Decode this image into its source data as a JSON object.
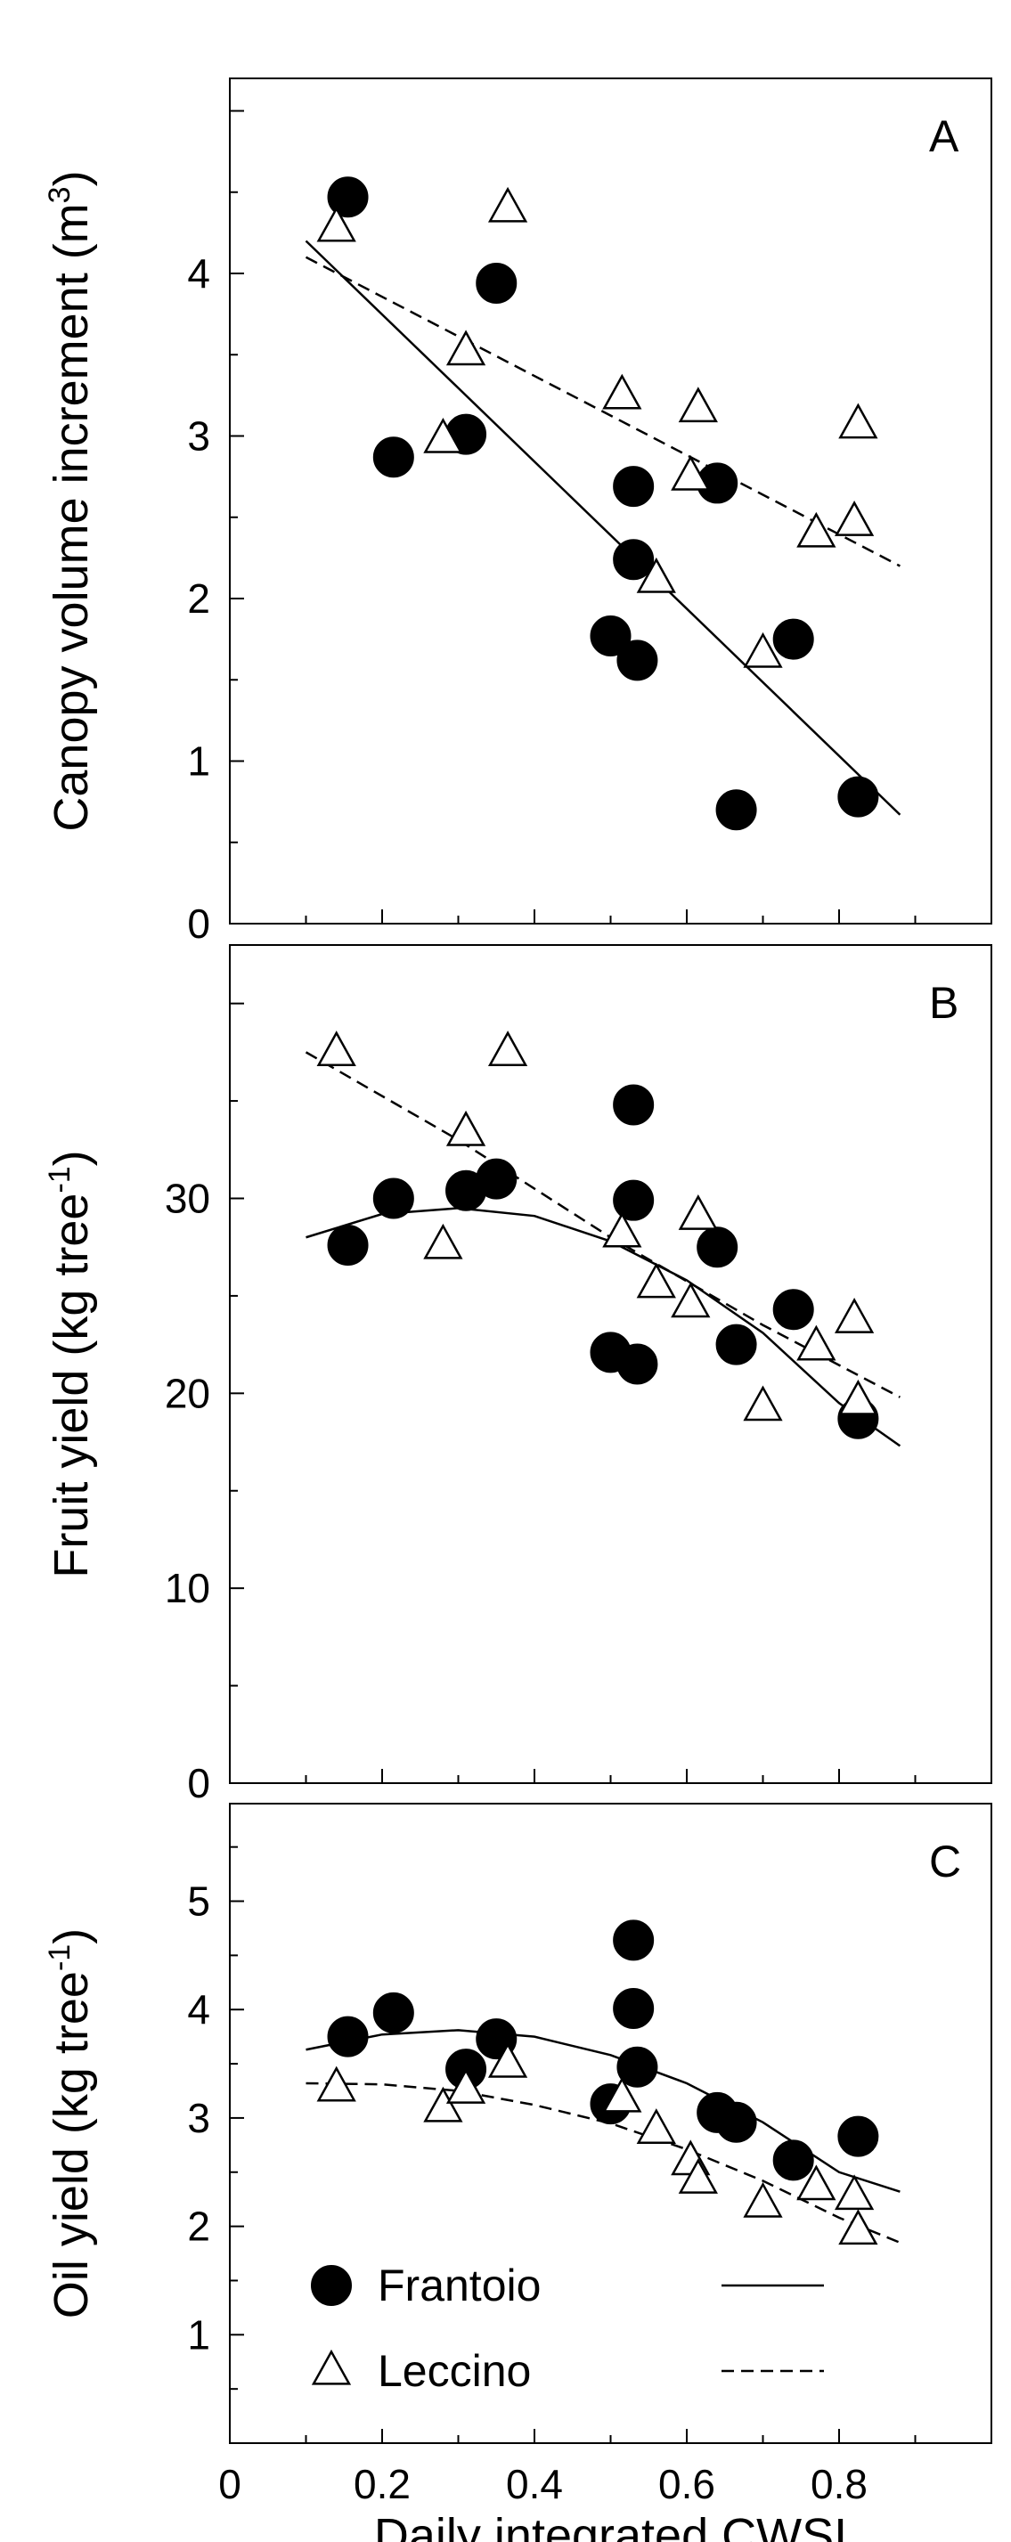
{
  "chart_data": [
    {
      "type": "scatter",
      "panel": "A",
      "ylabel": "Canopy volume increment (m",
      "ylabel_sup": "3",
      "ylabel_end": ")",
      "ylim": [
        0,
        5.2
      ],
      "yticks": [
        0,
        1,
        2,
        3,
        4
      ],
      "xlim": [
        0,
        1.0
      ],
      "series": [
        {
          "name": "Frantoio",
          "marker": "circle",
          "fit": "solid",
          "x": [
            0.155,
            0.215,
            0.31,
            0.35,
            0.5,
            0.53,
            0.53,
            0.535,
            0.64,
            0.665,
            0.74,
            0.825
          ],
          "y": [
            4.47,
            2.87,
            3.01,
            3.94,
            1.77,
            2.69,
            2.24,
            1.62,
            2.71,
            0.7,
            1.75,
            0.78
          ],
          "fit_line": {
            "x": [
              0.1,
              0.88
            ],
            "y": [
              4.2,
              0.67
            ]
          }
        },
        {
          "name": "Leccino",
          "marker": "triangle",
          "fit": "dashed",
          "x": [
            0.14,
            0.28,
            0.31,
            0.365,
            0.515,
            0.56,
            0.605,
            0.615,
            0.7,
            0.77,
            0.82,
            0.825
          ],
          "y": [
            4.28,
            2.98,
            3.52,
            4.4,
            3.25,
            2.12,
            2.75,
            3.17,
            1.66,
            2.4,
            2.47,
            3.07
          ],
          "fit_line": {
            "x": [
              0.1,
              0.88
            ],
            "y": [
              4.1,
              2.2
            ]
          }
        }
      ]
    },
    {
      "type": "scatter",
      "panel": "B",
      "ylabel": "Fruit yield (kg tree",
      "ylabel_sup": "-1",
      "ylabel_end": ")",
      "ylim": [
        0,
        43
      ],
      "yticks": [
        0,
        10,
        20,
        30
      ],
      "xlim": [
        0,
        1.0
      ],
      "series": [
        {
          "name": "Frantoio",
          "marker": "circle",
          "fit": "solid",
          "x": [
            0.155,
            0.215,
            0.31,
            0.35,
            0.5,
            0.53,
            0.53,
            0.535,
            0.64,
            0.665,
            0.74,
            0.825
          ],
          "y": [
            27.6,
            30.0,
            30.4,
            31.0,
            22.1,
            34.8,
            29.9,
            21.5,
            27.5,
            22.5,
            24.3,
            18.7
          ],
          "fit_line": {
            "x": [
              0.1,
              0.2,
              0.3,
              0.4,
              0.5,
              0.6,
              0.7,
              0.8,
              0.88
            ],
            "y": [
              28.0,
              29.2,
              29.5,
              29.1,
              27.8,
              25.8,
              23.1,
              19.5,
              17.3
            ]
          }
        },
        {
          "name": "Leccino",
          "marker": "triangle",
          "fit": "dashed",
          "x": [
            0.14,
            0.28,
            0.31,
            0.365,
            0.515,
            0.56,
            0.605,
            0.615,
            0.7,
            0.77,
            0.82,
            0.825
          ],
          "y": [
            37.5,
            27.6,
            33.4,
            37.5,
            28.2,
            25.6,
            24.6,
            29.1,
            19.3,
            22.4,
            23.8,
            19.6
          ],
          "fit_line": {
            "x": [
              0.1,
              0.3,
              0.5,
              0.7,
              0.88
            ],
            "y": [
              37.5,
              33.0,
              28.0,
              23.5,
              19.8
            ]
          }
        }
      ]
    },
    {
      "type": "scatter",
      "panel": "C",
      "ylabel": "Oil yield (kg tree",
      "ylabel_sup": "-1",
      "ylabel_end": ")",
      "ylim": [
        0,
        5.9
      ],
      "yticks": [
        1,
        2,
        3,
        4,
        5
      ],
      "xlim": [
        0,
        1.0
      ],
      "xticks": [
        0,
        0.2,
        0.4,
        0.6,
        0.8
      ],
      "xtick_labels": [
        "0",
        "0.2",
        "0.4",
        "0.6",
        "0.8"
      ],
      "xlabel": "Daily integrated CWSI",
      "series": [
        {
          "name": "Frantoio",
          "marker": "circle",
          "fit": "solid",
          "x": [
            0.155,
            0.215,
            0.31,
            0.35,
            0.5,
            0.53,
            0.53,
            0.535,
            0.64,
            0.665,
            0.74,
            0.825
          ],
          "y": [
            3.75,
            3.97,
            3.45,
            3.73,
            3.13,
            4.64,
            4.01,
            3.47,
            3.05,
            2.96,
            2.61,
            2.83
          ],
          "fit_line": {
            "x": [
              0.1,
              0.2,
              0.3,
              0.4,
              0.5,
              0.6,
              0.7,
              0.8,
              0.88
            ],
            "y": [
              3.63,
              3.77,
              3.81,
              3.75,
              3.58,
              3.32,
              2.96,
              2.5,
              2.32
            ]
          }
        },
        {
          "name": "Leccino",
          "marker": "triangle",
          "fit": "dashed",
          "x": [
            0.14,
            0.28,
            0.31,
            0.365,
            0.515,
            0.56,
            0.605,
            0.615,
            0.7,
            0.77,
            0.82,
            0.825
          ],
          "y": [
            3.28,
            3.09,
            3.26,
            3.5,
            3.18,
            2.89,
            2.6,
            2.43,
            2.21,
            2.37,
            2.28,
            1.96
          ],
          "fit_line": {
            "x": [
              0.1,
              0.2,
              0.3,
              0.4,
              0.5,
              0.6,
              0.7,
              0.8,
              0.88
            ],
            "y": [
              3.32,
              3.31,
              3.25,
              3.12,
              2.95,
              2.71,
              2.42,
              2.08,
              1.85
            ]
          }
        }
      ],
      "legend": {
        "placement": "bottom-left",
        "entries": [
          "Frantoio",
          "Leccino"
        ]
      }
    }
  ]
}
